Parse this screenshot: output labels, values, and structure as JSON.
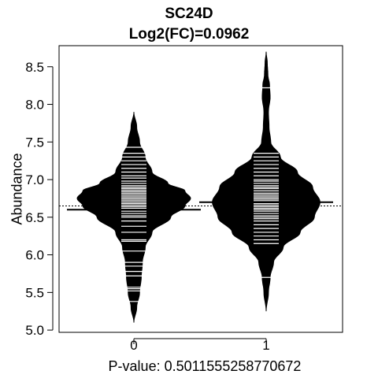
{
  "chart_data": {
    "type": "beanplot",
    "title": "SC24D",
    "subtitle": "Log2(FC)=0.0962",
    "ylabel": "Abundance",
    "xlabel": "P-value: 0.5011555258770672",
    "ylim": [
      4.97,
      8.78
    ],
    "yticks": [
      "5.0",
      "5.5",
      "6.0",
      "6.5",
      "7.0",
      "7.5",
      "8.0",
      "8.5"
    ],
    "categories": [
      "0",
      "1"
    ],
    "overall_mean": 6.65,
    "groups": [
      {
        "name": "0",
        "mean": 6.6,
        "min": 5.1,
        "max": 7.9,
        "points": [
          5.38,
          5.52,
          5.55,
          5.57,
          5.72,
          5.78,
          5.85,
          5.9,
          6.05,
          6.18,
          6.2,
          6.3,
          6.38,
          6.45,
          6.5,
          6.52,
          6.55,
          6.58,
          6.6,
          6.62,
          6.64,
          6.66,
          6.68,
          6.7,
          6.72,
          6.74,
          6.76,
          6.78,
          6.8,
          6.82,
          6.84,
          6.86,
          6.88,
          6.9,
          6.92,
          6.95,
          6.98,
          7.02,
          7.05,
          7.1,
          7.15,
          7.2,
          7.25,
          7.3,
          7.35,
          7.43
        ],
        "density": [
          [
            5.1,
            0.0
          ],
          [
            5.3,
            0.05
          ],
          [
            5.5,
            0.1
          ],
          [
            5.7,
            0.13
          ],
          [
            5.9,
            0.15
          ],
          [
            6.1,
            0.2
          ],
          [
            6.3,
            0.32
          ],
          [
            6.5,
            0.65
          ],
          [
            6.65,
            0.9
          ],
          [
            6.75,
            1.0
          ],
          [
            6.85,
            0.9
          ],
          [
            6.95,
            0.6
          ],
          [
            7.1,
            0.32
          ],
          [
            7.3,
            0.2
          ],
          [
            7.5,
            0.1
          ],
          [
            7.7,
            0.05
          ],
          [
            7.9,
            0.0
          ]
        ]
      },
      {
        "name": "1",
        "mean": 6.7,
        "min": 5.25,
        "max": 8.7,
        "points": [
          5.7,
          6.15,
          6.2,
          6.25,
          6.3,
          6.35,
          6.4,
          6.45,
          6.48,
          6.5,
          6.52,
          6.55,
          6.58,
          6.6,
          6.62,
          6.64,
          6.66,
          6.68,
          6.7,
          6.72,
          6.74,
          6.76,
          6.78,
          6.8,
          6.82,
          6.85,
          6.88,
          6.9,
          6.92,
          6.95,
          6.98,
          7.0,
          7.05,
          7.1,
          7.15,
          7.2,
          7.25,
          7.3,
          7.35,
          8.22
        ],
        "density": [
          [
            5.25,
            0.0
          ],
          [
            5.5,
            0.04
          ],
          [
            5.7,
            0.07
          ],
          [
            5.9,
            0.13
          ],
          [
            6.1,
            0.3
          ],
          [
            6.3,
            0.6
          ],
          [
            6.5,
            0.85
          ],
          [
            6.7,
            0.95
          ],
          [
            6.9,
            0.82
          ],
          [
            7.1,
            0.55
          ],
          [
            7.3,
            0.25
          ],
          [
            7.5,
            0.08
          ],
          [
            7.7,
            0.05
          ],
          [
            7.9,
            0.04
          ],
          [
            8.1,
            0.07
          ],
          [
            8.25,
            0.06
          ],
          [
            8.4,
            0.03
          ],
          [
            8.55,
            0.02
          ],
          [
            8.7,
            0.0
          ]
        ]
      }
    ]
  }
}
